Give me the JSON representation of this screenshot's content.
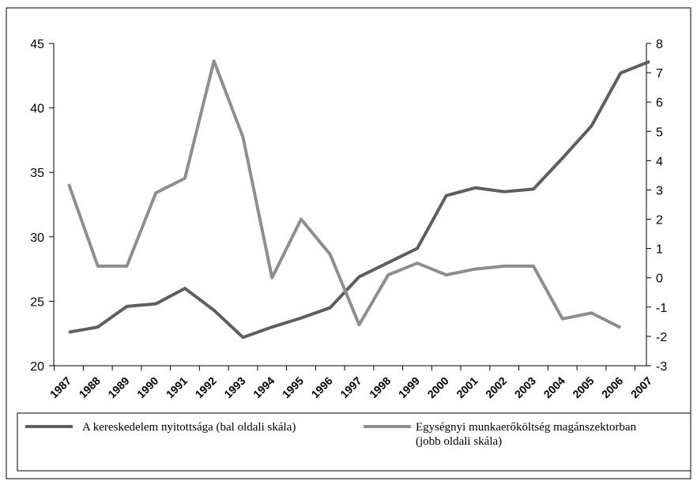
{
  "chart_data": {
    "type": "line",
    "categories": [
      "1987",
      "1988",
      "1989",
      "1990",
      "1991",
      "1992",
      "1993",
      "1994",
      "1995",
      "1996",
      "1997",
      "1998",
      "1999",
      "2000",
      "2001",
      "2002",
      "2003",
      "2004",
      "2005",
      "2006",
      "2007"
    ],
    "series": [
      {
        "name": "A kereskedelem nyitottsága (bal oldali skála)",
        "color": "#5e5e5e",
        "axis": "y",
        "values": [
          22.6,
          23.0,
          24.6,
          24.8,
          26.0,
          24.3,
          22.2,
          23.0,
          23.7,
          24.5,
          26.9,
          28.0,
          29.1,
          33.2,
          33.8,
          33.5,
          33.7,
          36.1,
          38.6,
          42.7,
          43.6
        ]
      },
      {
        "name": "Egységnyi munkaerőköltség magánszektorban (jobb oldali skála)",
        "color": "#8e8e8e",
        "axis": "y2",
        "values": [
          3.2,
          0.4,
          0.4,
          2.9,
          3.4,
          7.4,
          4.8,
          0.0,
          2.0,
          0.8,
          -1.6,
          0.1,
          0.5,
          0.1,
          0.3,
          0.4,
          0.4,
          -1.4,
          -1.2,
          -1.7,
          null
        ]
      }
    ],
    "ylim": [
      20,
      45
    ],
    "yticks": [
      20,
      25,
      30,
      35,
      40,
      45
    ],
    "y2lim": [
      -3,
      8
    ],
    "y2ticks": [
      -3,
      -2,
      -1,
      0,
      1,
      2,
      3,
      4,
      5,
      6,
      7,
      8
    ]
  }
}
